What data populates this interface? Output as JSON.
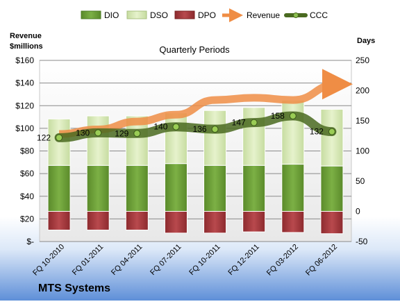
{
  "chart_data": {
    "type": "bar",
    "title": "Quarterly Periods",
    "company": "MTS Systems",
    "left_axis_title": [
      "Revenue",
      "$millions"
    ],
    "right_axis_title": "Days",
    "left_ylim": [
      0,
      160
    ],
    "right_ylim": [
      -50,
      250
    ],
    "left_ticks": [
      "$-",
      "$20",
      "$40",
      "$60",
      "$80",
      "$100",
      "$120",
      "$140",
      "$160"
    ],
    "right_ticks": [
      "-50",
      "0",
      "50",
      "100",
      "150",
      "200",
      "250"
    ],
    "categories": [
      "FQ 10-2010",
      "FQ 01-2011",
      "FQ 04-2011",
      "FQ 07-2011",
      "FQ 10-2011",
      "FQ 12-2011",
      "FQ 03-2012",
      "FQ 06-2012"
    ],
    "series": [
      {
        "name": "DIO",
        "axis": "days",
        "kind": "stacked-bar",
        "values": [
          76,
          76,
          76,
          79,
          76,
          76,
          78,
          75
        ],
        "color": "#6a9a35"
      },
      {
        "name": "DSO",
        "axis": "days",
        "kind": "stacked-bar",
        "values": [
          77,
          82,
          82,
          84,
          91,
          96,
          106,
          94
        ],
        "color": "#d6e8b4"
      },
      {
        "name": "DPO",
        "axis": "days",
        "kind": "stacked-bar-negative",
        "values": [
          -31,
          -31,
          -31,
          -36,
          -36,
          -34,
          -35,
          -37
        ],
        "color": "#a8383c"
      },
      {
        "name": "Revenue",
        "axis": "left",
        "kind": "line",
        "values": [
          95,
          99,
          106,
          112,
          125,
          127,
          125,
          139
        ],
        "color": "#f0a060"
      },
      {
        "name": "CCC",
        "axis": "days",
        "kind": "line",
        "values": [
          122,
          130,
          129,
          140,
          136,
          147,
          158,
          132
        ],
        "color": "#4a6a20"
      }
    ],
    "ccc_labels": [
      "122",
      "130",
      "129",
      "140",
      "136",
      "147",
      "158",
      "132"
    ],
    "legend_position": "top",
    "grid": "horizontal"
  }
}
